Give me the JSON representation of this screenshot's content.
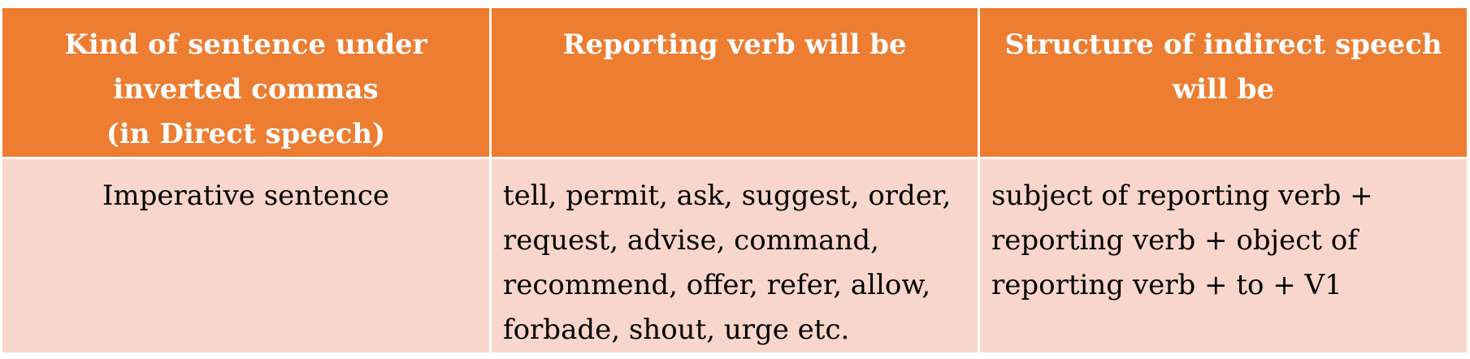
{
  "table": {
    "headers": [
      [
        "Kind of sentence under",
        "inverted commas",
        "(in Direct speech)"
      ],
      [
        "Reporting verb will be"
      ],
      [
        "Structure of indirect speech",
        "will be"
      ]
    ],
    "rows": [
      {
        "kind": [
          "Imperative sentence"
        ],
        "reporting_verb": [
          "tell, permit, ask,  suggest, order,",
          "request, advise,  command,",
          "recommend, offer, refer, allow,",
          "forbade, shout, urge etc."
        ],
        "structure": [
          "subject of reporting verb +",
          "reporting verb + object of",
          "reporting verb + to + V1"
        ]
      }
    ]
  },
  "colors": {
    "header_bg": "#ed7d31",
    "row_bg": "#f8d6cc",
    "border": "#ffffff"
  }
}
